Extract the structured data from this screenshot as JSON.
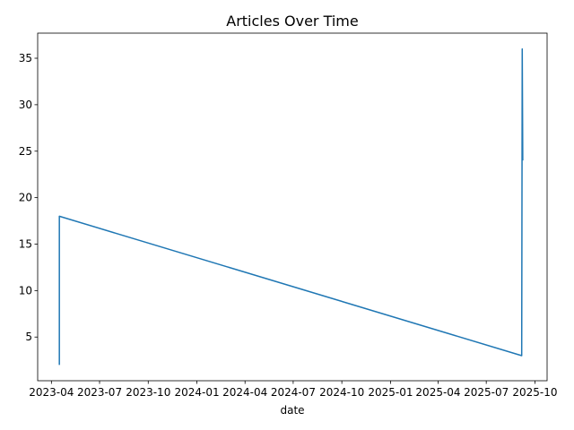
{
  "chart_data": {
    "type": "line",
    "title": "Articles Over Time",
    "xlabel": "date",
    "ylabel": "",
    "x_tick_labels": [
      "2023-04",
      "2023-07",
      "2023-10",
      "2024-01",
      "2024-04",
      "2024-07",
      "2024-10",
      "2025-01",
      "2025-04",
      "2025-07",
      "2025-10"
    ],
    "x_ticks": [
      "2023-04-01",
      "2023-07-01",
      "2023-10-01",
      "2024-01-01",
      "2024-04-01",
      "2024-07-01",
      "2024-10-01",
      "2025-01-01",
      "2025-04-01",
      "2025-07-01",
      "2025-10-01"
    ],
    "y_ticks": [
      5,
      10,
      15,
      20,
      25,
      30,
      35
    ],
    "xlim": [
      "2023-03-06",
      "2025-10-24"
    ],
    "ylim": [
      0.3,
      37.7
    ],
    "grid": false,
    "series": [
      {
        "color": "#1f77b4",
        "points": [
          {
            "x": "2023-04-16",
            "y": 2
          },
          {
            "x": "2023-04-16",
            "y": 18
          },
          {
            "x": "2025-09-06",
            "y": 3
          },
          {
            "x": "2025-09-07",
            "y": 36
          },
          {
            "x": "2025-09-08",
            "y": 24
          }
        ]
      }
    ]
  }
}
